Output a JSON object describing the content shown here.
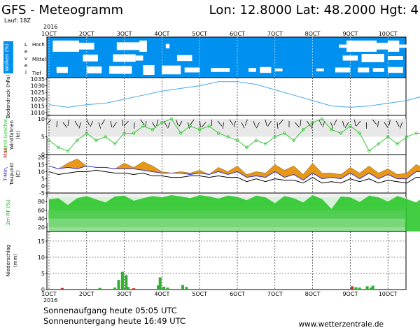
{
  "header": {
    "title": "GFS - Meteogramm",
    "location": "Lon: 12.8000  Lat: 48.2000  Hgt: 4",
    "run": "Lauf: 18Z",
    "year": "2016"
  },
  "footer": {
    "sunrise": "Sonnenaufgang heute 05:05 UTC",
    "sunset": "Sonnenuntergang heute 16:49 UTC",
    "credit": "www.wetterzentrale.de"
  },
  "time_axis": {
    "labels": [
      "1OCT",
      "2OCT",
      "3OCT",
      "4OCT",
      "5OCT",
      "6OCT",
      "7OCT",
      "8OCT",
      "9OCT",
      "10OCT"
    ],
    "bottom_year": "2016"
  },
  "panels": {
    "clouds": {
      "ylabel": "Wolken (%)",
      "level_title": "Level",
      "levels": [
        "Hoch",
        "Mittel",
        "Tief"
      ]
    },
    "pressure": {
      "ylabel": "Bodendruck (hPa)",
      "ticks": [
        "1035",
        "1030",
        "1025",
        "1020",
        "1015",
        "1010"
      ]
    },
    "wind": {
      "ylabel_color": "Wind Geschw.",
      "ylabel_black": "Windfahnen",
      "ylabel_unit": "(kt)",
      "ticks": [
        "10",
        "5",
        "0"
      ]
    },
    "temperature": {
      "ylabel_min": "T-Min,",
      "ylabel_max": "Max",
      "ylabel_dew": "Taupunkt",
      "ylabel_unit": "(C)",
      "ticks": [
        "20",
        "15",
        "10",
        "5",
        "0",
        "-5"
      ]
    },
    "humidity": {
      "ylabel": "2m RF (%)",
      "ticks": [
        "80",
        "60",
        "40",
        "20"
      ]
    },
    "precip": {
      "ylabel": "Niederschlag",
      "ylabel_unit": "(mm)",
      "ticks": [
        "15",
        "10",
        "5",
        "0"
      ]
    }
  },
  "colors": {
    "cloud_bg": "#0090f0",
    "pressure_line": "#4aa8e8",
    "wind_line": "#38c838",
    "tmax_fill": "#e89818",
    "tmin_fill": "#30c030",
    "humidity_fill": "#22c422",
    "precip_green": "#30b030",
    "precip_red": "#c83018"
  },
  "chart_data": [
    {
      "type": "line",
      "title": "Bodendruck",
      "ylabel": "Bodendruck (hPa)",
      "ylim": [
        1008,
        1036
      ],
      "x": [
        1,
        1.5,
        2,
        2.5,
        3,
        3.5,
        4,
        4.5,
        5,
        5.5,
        6,
        6.5,
        7,
        7.5,
        8,
        8.5,
        9,
        9.5,
        10,
        10.5,
        10.9
      ],
      "series": [
        {
          "values": [
            1016,
            1014,
            1016,
            1017,
            1020,
            1023,
            1026,
            1028,
            1030,
            1033,
            1033,
            1031,
            1027,
            1023,
            1019,
            1015,
            1014,
            1015,
            1017,
            1019,
            1022
          ]
        }
      ]
    },
    {
      "type": "line",
      "title": "Wind",
      "ylabel": "Wind Geschw. (kt)",
      "ylim": [
        0,
        11
      ],
      "x": [
        1,
        1.25,
        1.5,
        1.75,
        2,
        2.25,
        2.5,
        2.75,
        3,
        3.25,
        3.5,
        3.75,
        4,
        4.25,
        4.5,
        4.75,
        5,
        5.25,
        5.5,
        5.75,
        6,
        6.25,
        6.5,
        6.75,
        7,
        7.25,
        7.5,
        7.75,
        8,
        8.25,
        8.5,
        8.75,
        9,
        9.25,
        9.5,
        9.75,
        10,
        10.25,
        10.5,
        10.75,
        10.9
      ],
      "series": [
        {
          "values": [
            4,
            2,
            1,
            4,
            6,
            4,
            5,
            3,
            6,
            6,
            8,
            7,
            9,
            10,
            6,
            8,
            7,
            8,
            6,
            5,
            4,
            2,
            4,
            3,
            5,
            6,
            4,
            7,
            9,
            10,
            7,
            6,
            8,
            6,
            1,
            3,
            5,
            3,
            5,
            6,
            6
          ]
        }
      ]
    },
    {
      "type": "area",
      "title": "Temperatur",
      "ylabel": "T-Min, Max Taupunkt (C)",
      "ylim": [
        -5,
        22
      ],
      "x": [
        1,
        1.25,
        1.5,
        1.75,
        2,
        2.25,
        2.5,
        2.75,
        3,
        3.25,
        3.5,
        3.75,
        4,
        4.25,
        4.5,
        4.75,
        5,
        5.25,
        5.5,
        5.75,
        6,
        6.25,
        6.5,
        6.75,
        7,
        7.25,
        7.5,
        7.75,
        8,
        8.25,
        8.5,
        8.75,
        9,
        9.25,
        9.5,
        9.75,
        10,
        10.25,
        10.5,
        10.75,
        10.9
      ],
      "series": [
        {
          "values": [
            14,
            12,
            16,
            19,
            14,
            13,
            13,
            12,
            16,
            13,
            17,
            14,
            10,
            9,
            10,
            9,
            11,
            8,
            13,
            10,
            14,
            8,
            10,
            9,
            15,
            11,
            14,
            8,
            16,
            9,
            9,
            8,
            13,
            9,
            14,
            9,
            12,
            8,
            9,
            15,
            13
          ]
        },
        {
          "values": [
            14,
            12,
            13,
            12,
            14,
            13,
            13,
            12,
            12,
            12,
            11,
            10,
            9,
            9,
            9,
            8,
            9,
            8,
            10,
            8,
            10,
            6,
            7,
            6,
            10,
            6,
            8,
            4,
            9,
            5,
            6,
            5,
            9,
            5,
            9,
            5,
            8,
            5,
            5,
            10,
            10
          ]
        },
        {
          "values": [
            10,
            8,
            9,
            10,
            10,
            11,
            10,
            9,
            9,
            8,
            9,
            7,
            7,
            6,
            6,
            7,
            7,
            6,
            7,
            6,
            6,
            3,
            5,
            3,
            5,
            4,
            4,
            2,
            6,
            2,
            3,
            2,
            5,
            3,
            5,
            2,
            4,
            3,
            2,
            6,
            6
          ]
        }
      ]
    },
    {
      "type": "area",
      "title": "2m RF",
      "ylabel": "2m RF (%)",
      "ylim": [
        10,
        100
      ],
      "x": [
        1,
        1.25,
        1.5,
        1.75,
        2,
        2.25,
        2.5,
        2.75,
        3,
        3.25,
        3.5,
        3.75,
        4,
        4.25,
        4.5,
        4.75,
        5,
        5.25,
        5.5,
        5.75,
        6,
        6.25,
        6.5,
        6.75,
        7,
        7.25,
        7.5,
        7.75,
        8,
        8.25,
        8.5,
        8.75,
        9,
        9.25,
        9.5,
        9.75,
        10,
        10.25,
        10.5,
        10.75,
        10.9
      ],
      "series": [
        {
          "values": [
            85,
            88,
            72,
            88,
            93,
            85,
            78,
            92,
            94,
            82,
            88,
            93,
            90,
            95,
            92,
            88,
            95,
            92,
            87,
            94,
            91,
            83,
            94,
            90,
            76,
            93,
            88,
            78,
            95,
            86,
            63,
            92,
            90,
            79,
            94,
            90,
            80,
            93,
            86,
            78,
            88
          ]
        }
      ]
    },
    {
      "type": "bar",
      "title": "Niederschlag",
      "ylabel": "Niederschlag (mm)",
      "ylim": [
        0,
        18
      ],
      "x": [
        1.35,
        2.35,
        2.75,
        2.85,
        2.95,
        3.05,
        3.1,
        3.25,
        3.9,
        3.95,
        4.05,
        4.15,
        4.55,
        4.65,
        9.05,
        9.15,
        9.25,
        9.45,
        9.55,
        9.6
      ],
      "series": [
        {
          "name": "green",
          "values": [
            0.5,
            0.5,
            0.6,
            3,
            5.5,
            4.5,
            0.8,
            0.4,
            1.3,
            3.8,
            0.9,
            0.6,
            1.4,
            0.8,
            1.0,
            0.7,
            0.6,
            1.0,
            0.6,
            1.2
          ]
        }
      ]
    }
  ]
}
